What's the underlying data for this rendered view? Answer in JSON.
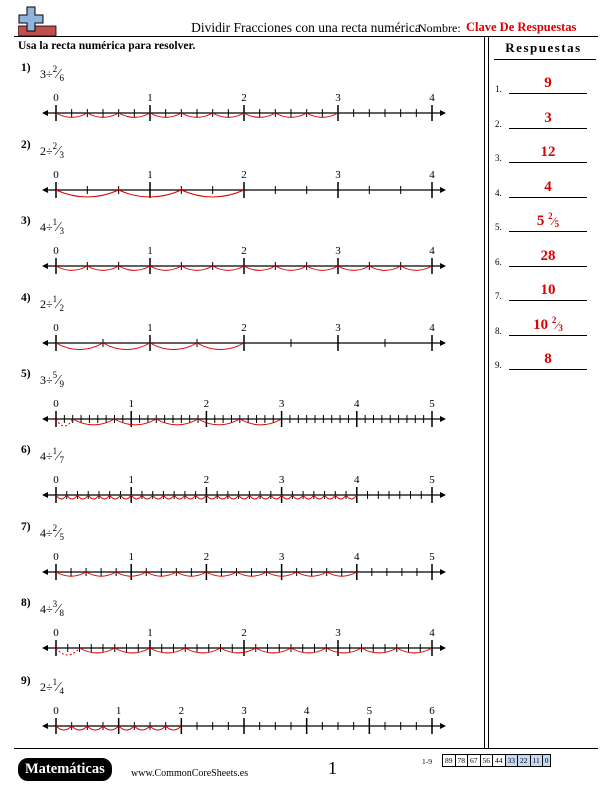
{
  "header": {
    "title": "Dividir Fracciones con una recta numérica",
    "name_label": "Nombre:",
    "name_value": "Clave De Respuestas",
    "instructions": "Usa la recta numérica para resolver."
  },
  "problems": [
    {
      "num": "1)",
      "whole": "3",
      "op": "÷",
      "numerator": "2",
      "denominator": "6",
      "max": 4,
      "divisions": 6,
      "tick_labels": [
        "0",
        "1",
        "2",
        "3",
        "4"
      ],
      "jumps": 9,
      "partial": false
    },
    {
      "num": "2)",
      "whole": "2",
      "op": "÷",
      "numerator": "2",
      "denominator": "3",
      "max": 4,
      "divisions": 3,
      "tick_labels": [
        "0",
        "1",
        "2",
        "3",
        "4"
      ],
      "jumps": 3,
      "partial": false
    },
    {
      "num": "3)",
      "whole": "4",
      "op": "÷",
      "numerator": "1",
      "denominator": "3",
      "max": 4,
      "divisions": 3,
      "tick_labels": [
        "0",
        "1",
        "2",
        "3",
        "4"
      ],
      "jumps": 12,
      "partial": false
    },
    {
      "num": "4)",
      "whole": "2",
      "op": "÷",
      "numerator": "1",
      "denominator": "2",
      "max": 4,
      "divisions": 2,
      "tick_labels": [
        "0",
        "1",
        "2",
        "3",
        "4"
      ],
      "jumps": 4,
      "partial": false
    },
    {
      "num": "5)",
      "whole": "3",
      "op": "÷",
      "numerator": "5",
      "denominator": "9",
      "max": 5,
      "divisions": 9,
      "tick_labels": [
        "0",
        "1",
        "2",
        "3",
        "4",
        "5"
      ],
      "jumps": 5,
      "partial": true
    },
    {
      "num": "6)",
      "whole": "4",
      "op": "÷",
      "numerator": "1",
      "denominator": "7",
      "max": 5,
      "divisions": 7,
      "tick_labels": [
        "0",
        "1",
        "2",
        "3",
        "4",
        "5"
      ],
      "jumps": 28,
      "partial": false
    },
    {
      "num": "7)",
      "whole": "4",
      "op": "÷",
      "numerator": "2",
      "denominator": "5",
      "max": 5,
      "divisions": 5,
      "tick_labels": [
        "0",
        "1",
        "2",
        "3",
        "4",
        "5"
      ],
      "jumps": 10,
      "partial": false
    },
    {
      "num": "8)",
      "whole": "4",
      "op": "÷",
      "numerator": "3",
      "denominator": "8",
      "max": 4,
      "divisions": 8,
      "tick_labels": [
        "0",
        "1",
        "2",
        "3",
        "4"
      ],
      "jumps": 10,
      "partial": true
    },
    {
      "num": "9)",
      "whole": "2",
      "op": "÷",
      "numerator": "1",
      "denominator": "4",
      "max": 6,
      "divisions": 4,
      "tick_labels": [
        "0",
        "1",
        "2",
        "3",
        "4",
        "5",
        "6"
      ],
      "jumps": 8,
      "partial": false
    }
  ],
  "answers": {
    "title": "Respuestas",
    "items": [
      {
        "num": "1.",
        "value": "9"
      },
      {
        "num": "2.",
        "value": "3"
      },
      {
        "num": "3.",
        "value": "12"
      },
      {
        "num": "4.",
        "value": "4"
      },
      {
        "num": "5.",
        "value": "5 2/5"
      },
      {
        "num": "6.",
        "value": "28"
      },
      {
        "num": "7.",
        "value": "10"
      },
      {
        "num": "8.",
        "value": "10 2/3"
      },
      {
        "num": "9.",
        "value": "8"
      }
    ]
  },
  "footer": {
    "badge": "Matemáticas",
    "site": "www.CommonCoreSheets.es",
    "page": "1",
    "score_range": "1-9",
    "scores": [
      "89",
      "78",
      "67",
      "56",
      "44",
      "33",
      "22",
      "11",
      "0"
    ]
  },
  "colors": {
    "accent": "#dd0000",
    "score_highlight": "#c5d9f1",
    "logo_plus": "#8fb3d9",
    "logo_bar": "#c0504d"
  }
}
